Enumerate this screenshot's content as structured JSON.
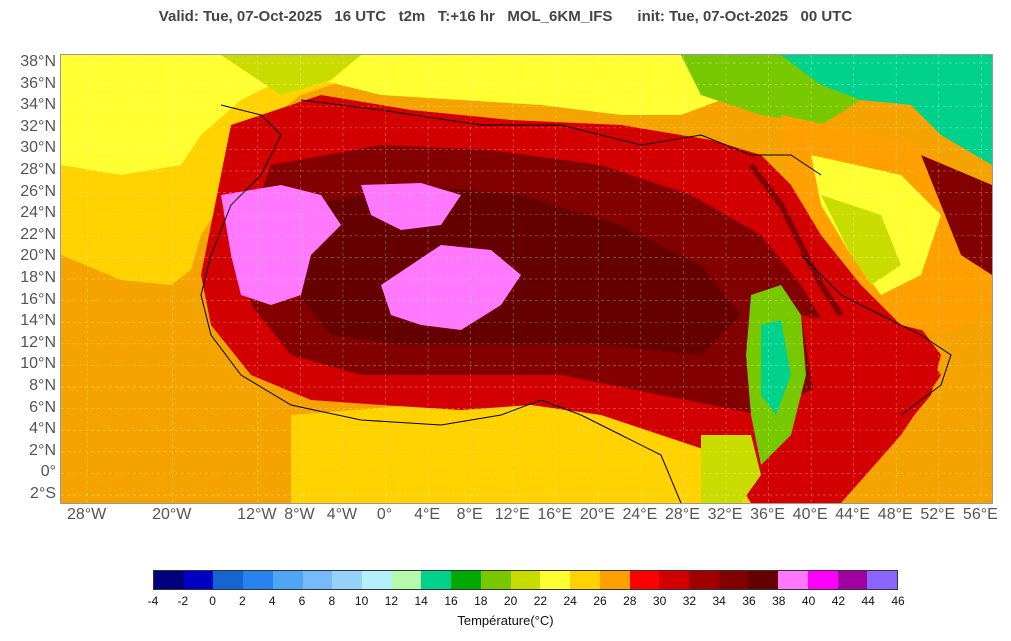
{
  "header": {
    "title": "Valid: Tue, 07-Oct-2025   16 UTC   t2m   T:+16 hr   MOL_6KM_IFS      init: Tue, 07-Oct-2025   00 UTC"
  },
  "map": {
    "lat_labels": [
      "38°N",
      "36°N",
      "34°N",
      "32°N",
      "30°N",
      "28°N",
      "26°N",
      "24°N",
      "22°N",
      "20°N",
      "18°N",
      "16°N",
      "14°N",
      "12°N",
      "10°N",
      "8°N",
      "6°N",
      "4°N",
      "2°N",
      "0°",
      "2°S"
    ],
    "lon_labels": [
      "28°W",
      "20°W",
      "12°W",
      "8°W",
      "4°W",
      "0°",
      "4°E",
      "8°E",
      "12°E",
      "16°E",
      "20°E",
      "24°E",
      "28°E",
      "32°E",
      "36°E",
      "40°E",
      "44°E",
      "48°E",
      "52°E",
      "56°E"
    ]
  },
  "legend": {
    "title": "Température(°C)",
    "ticks": [
      "-4",
      "-2",
      "0",
      "2",
      "4",
      "6",
      "8",
      "10",
      "12",
      "14",
      "16",
      "18",
      "20",
      "22",
      "24",
      "26",
      "28",
      "30",
      "32",
      "34",
      "36",
      "38",
      "40",
      "42",
      "44",
      "46"
    ],
    "colors": [
      "#00007f",
      "#0000c4",
      "#1464d2",
      "#2882f0",
      "#50a5f5",
      "#78b9fa",
      "#96d2fa",
      "#b4f0fa",
      "#b4faaa",
      "#00d28c",
      "#00aa00",
      "#78c800",
      "#c8dc00",
      "#ffff32",
      "#ffd200",
      "#ffa000",
      "#ff0000",
      "#d20000",
      "#a00000",
      "#820000",
      "#640000",
      "#ff78ff",
      "#ff00ff",
      "#a000a0",
      "#8c64ff"
    ]
  }
}
